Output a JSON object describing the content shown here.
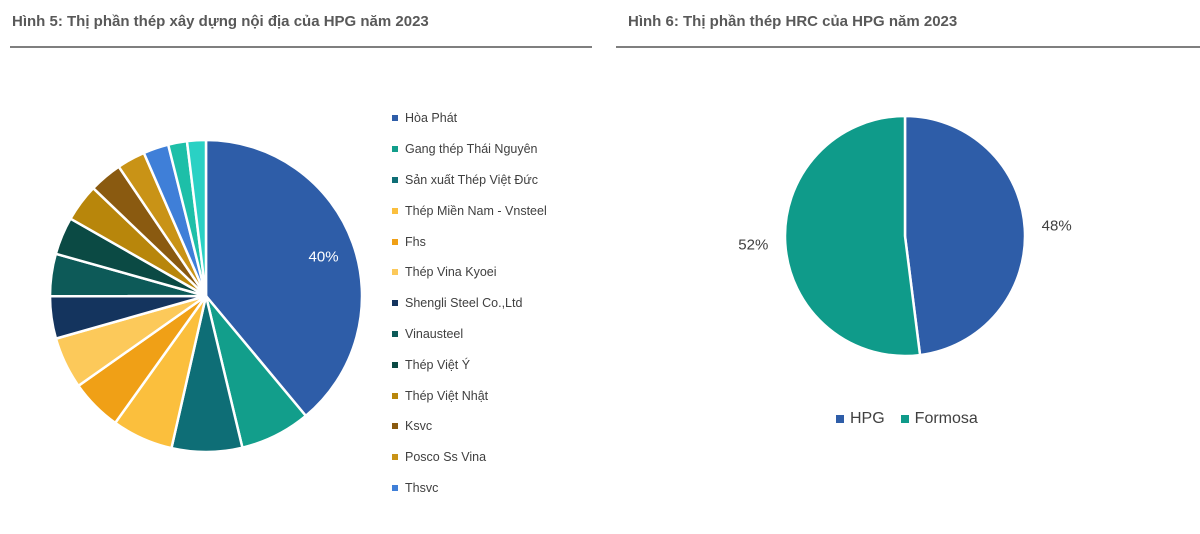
{
  "chart_data": [
    {
      "type": "pie",
      "title": "Hình 5: Thị phần thép xây dựng nội địa của HPG năm 2023",
      "slices": [
        {
          "label": "Hòa Phát",
          "value": 40,
          "color": "#2e5da8",
          "data_label": "40%"
        },
        {
          "label": "Gang thép Thái Nguyên",
          "value": 7.5,
          "color": "#129e8b"
        },
        {
          "label": "Sản xuất Thép Việt Đức",
          "value": 7.5,
          "color": "#0e6e76"
        },
        {
          "label": "Thép Miền Nam - Vnsteel",
          "value": 6.5,
          "color": "#fbbf3d"
        },
        {
          "label": "Fhs",
          "value": 5.5,
          "color": "#f0a016"
        },
        {
          "label": "Thép Vina Kyoei",
          "value": 5.5,
          "color": "#fcc95a"
        },
        {
          "label": "Shengli Steel Co.,Ltd",
          "value": 4.5,
          "color": "#14345e"
        },
        {
          "label": "Vinausteel",
          "value": 4.5,
          "color": "#0d5a58"
        },
        {
          "label": "Thép Việt Ý",
          "value": 4.0,
          "color": "#0b4a44"
        },
        {
          "label": "Thép Việt Nhật",
          "value": 4.0,
          "color": "#b8860b"
        },
        {
          "label": "Ksvc",
          "value": 3.5,
          "color": "#8a5a10"
        },
        {
          "label": "Posco Ss Vina",
          "value": 3.0,
          "color": "#c99316"
        },
        {
          "label": "Thsvc",
          "value": 2.7,
          "color": "#3f7fd8"
        },
        {
          "label": "",
          "value": 2.0,
          "color": "#1dbfa8"
        },
        {
          "label": "",
          "value": 2.0,
          "color": "#2ad1c4"
        }
      ],
      "legend_position": "right"
    },
    {
      "type": "pie",
      "title": "Hình 6: Thị phần thép HRC của HPG năm 2023",
      "slices": [
        {
          "label": "HPG",
          "value": 48,
          "color": "#2e5da8",
          "data_label": "48%"
        },
        {
          "label": "Formosa",
          "value": 52,
          "color": "#0f9b8a",
          "data_label": "52%"
        }
      ],
      "legend_position": "bottom"
    }
  ]
}
